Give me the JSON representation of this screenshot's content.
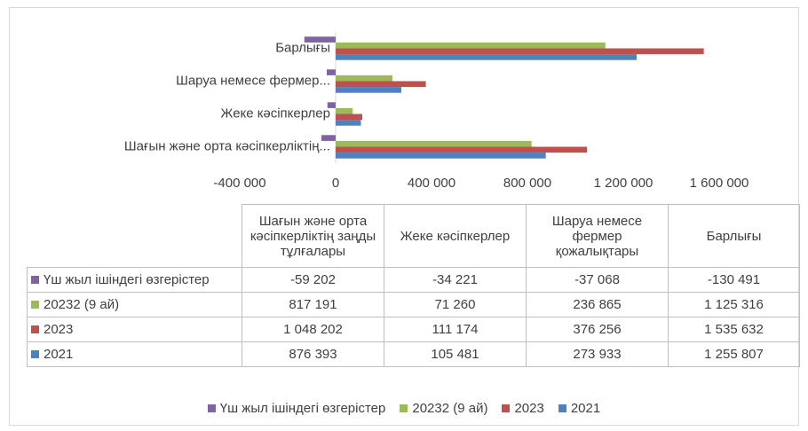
{
  "chart_data": {
    "type": "bar",
    "orientation": "horizontal",
    "categories": [
      "Шағын және орта кәсіпкерліктің...",
      "Жеке кәсіпкерлер",
      "Шаруа немесе фермер...",
      "Барлығы"
    ],
    "series": [
      {
        "name": "Үш жыл ішіндегі өзгерістер",
        "color": "#8064a2",
        "values": [
          -59202,
          -34221,
          -37068,
          -130491
        ],
        "value_labels": [
          "-59 202",
          "-34 221",
          "-37 068",
          "-130 491"
        ]
      },
      {
        "name": "20232 (9 ай)",
        "color": "#9bbb59",
        "values": [
          817191,
          71260,
          236865,
          1125316
        ],
        "value_labels": [
          "817 191",
          "71 260",
          "236 865",
          "1 125 316"
        ]
      },
      {
        "name": "2023",
        "color": "#c0504d",
        "values": [
          1048202,
          111174,
          376256,
          1535632
        ],
        "value_labels": [
          "1 048 202",
          "111 174",
          "376 256",
          "1 535 632"
        ]
      },
      {
        "name": "2021",
        "color": "#4f81bd",
        "values": [
          876393,
          105481,
          273933,
          1255807
        ],
        "value_labels": [
          "876 393",
          "105 481",
          "273 933",
          "1 255 807"
        ]
      }
    ],
    "xlim": [
      -400000,
      1600000
    ],
    "xticks": [
      {
        "value": -400000,
        "label": "-400 000"
      },
      0,
      {
        "value": 400000,
        "label": "400 000"
      },
      {
        "value": 800000,
        "label": "800 000"
      },
      {
        "value": 1200000,
        "label": "1 200 000"
      },
      {
        "value": 1600000,
        "label": "1 600 000"
      }
    ],
    "grid": false,
    "legend": "bottom",
    "data_table": {
      "column_headers": [
        "Шағын және орта кәсіпкерліктің заңды тұлғалары",
        "Жеке кәсіпкерлер",
        "Шаруа немесе фермер қожалықтары",
        "Барлығы"
      ]
    }
  }
}
